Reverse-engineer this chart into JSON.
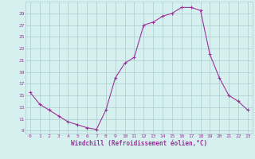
{
  "hours": [
    0,
    1,
    2,
    3,
    4,
    5,
    6,
    7,
    8,
    9,
    10,
    11,
    12,
    13,
    14,
    15,
    16,
    17,
    18,
    19,
    20,
    21,
    22,
    23
  ],
  "windchill": [
    15.5,
    13.5,
    12.5,
    11.5,
    10.5,
    10.0,
    9.5,
    9.2,
    12.5,
    18.0,
    20.5,
    21.5,
    27.0,
    27.5,
    28.5,
    29.0,
    30.0,
    30.0,
    29.5,
    22.0,
    18.0,
    15.0,
    14.0,
    12.5
  ],
  "line_color": "#993399",
  "marker": "+",
  "bg_color": "#d6f0f0",
  "grid_color": "#aacccc",
  "tick_color": "#993399",
  "label_color": "#993399",
  "xlabel": "Windchill (Refroidissement éolien,°C)",
  "ylabel_ticks": [
    9,
    11,
    13,
    15,
    17,
    19,
    21,
    23,
    25,
    27,
    29
  ],
  "ylim": [
    8.5,
    31
  ],
  "xlim": [
    -0.5,
    23.5
  ]
}
